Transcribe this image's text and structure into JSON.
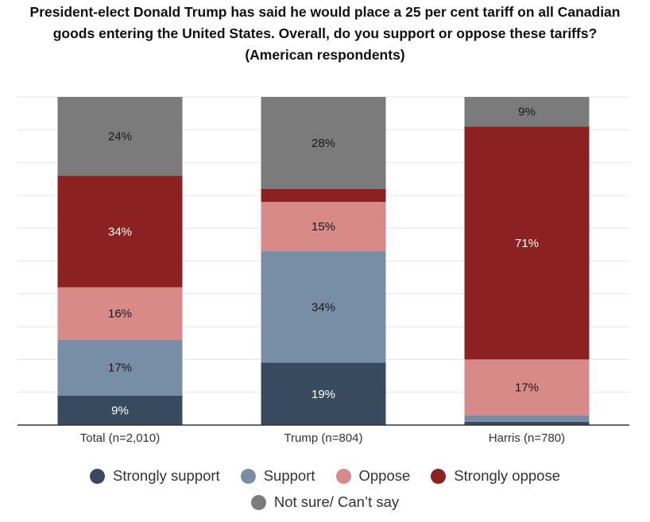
{
  "chart_data": {
    "type": "bar",
    "stacked": true,
    "title_lines": [
      "President-elect Donald Trump has said he would place a 25 per cent tariff on all Canadian",
      "goods entering the United States. Overall, do you support or oppose these tariffs?",
      "(American respondents)"
    ],
    "categories": [
      "Total (n=2,010)",
      "Trump (n=804)",
      "Harris (n=780)"
    ],
    "ylim": [
      0,
      100
    ],
    "series": [
      {
        "name": "Strongly support",
        "color": "#384a5e",
        "values": [
          9,
          19,
          1
        ],
        "labels": [
          "9%",
          "19%",
          ""
        ]
      },
      {
        "name": "Support",
        "color": "#788da6",
        "values": [
          17,
          34,
          2
        ],
        "labels": [
          "17%",
          "34%",
          ""
        ]
      },
      {
        "name": "Oppose",
        "color": "#d88a89",
        "values": [
          16,
          15,
          17
        ],
        "labels": [
          "16%",
          "15%",
          "17%"
        ]
      },
      {
        "name": "Strongly oppose",
        "color": "#8b2121",
        "values": [
          34,
          4,
          71
        ],
        "labels": [
          "34%",
          "",
          "71%"
        ]
      },
      {
        "name": "Not sure/ Can’t say",
        "color": "#7b7b7b",
        "values": [
          24,
          28,
          9
        ],
        "labels": [
          "24%",
          "28%",
          "9%"
        ]
      }
    ],
    "legend": "bottom"
  }
}
